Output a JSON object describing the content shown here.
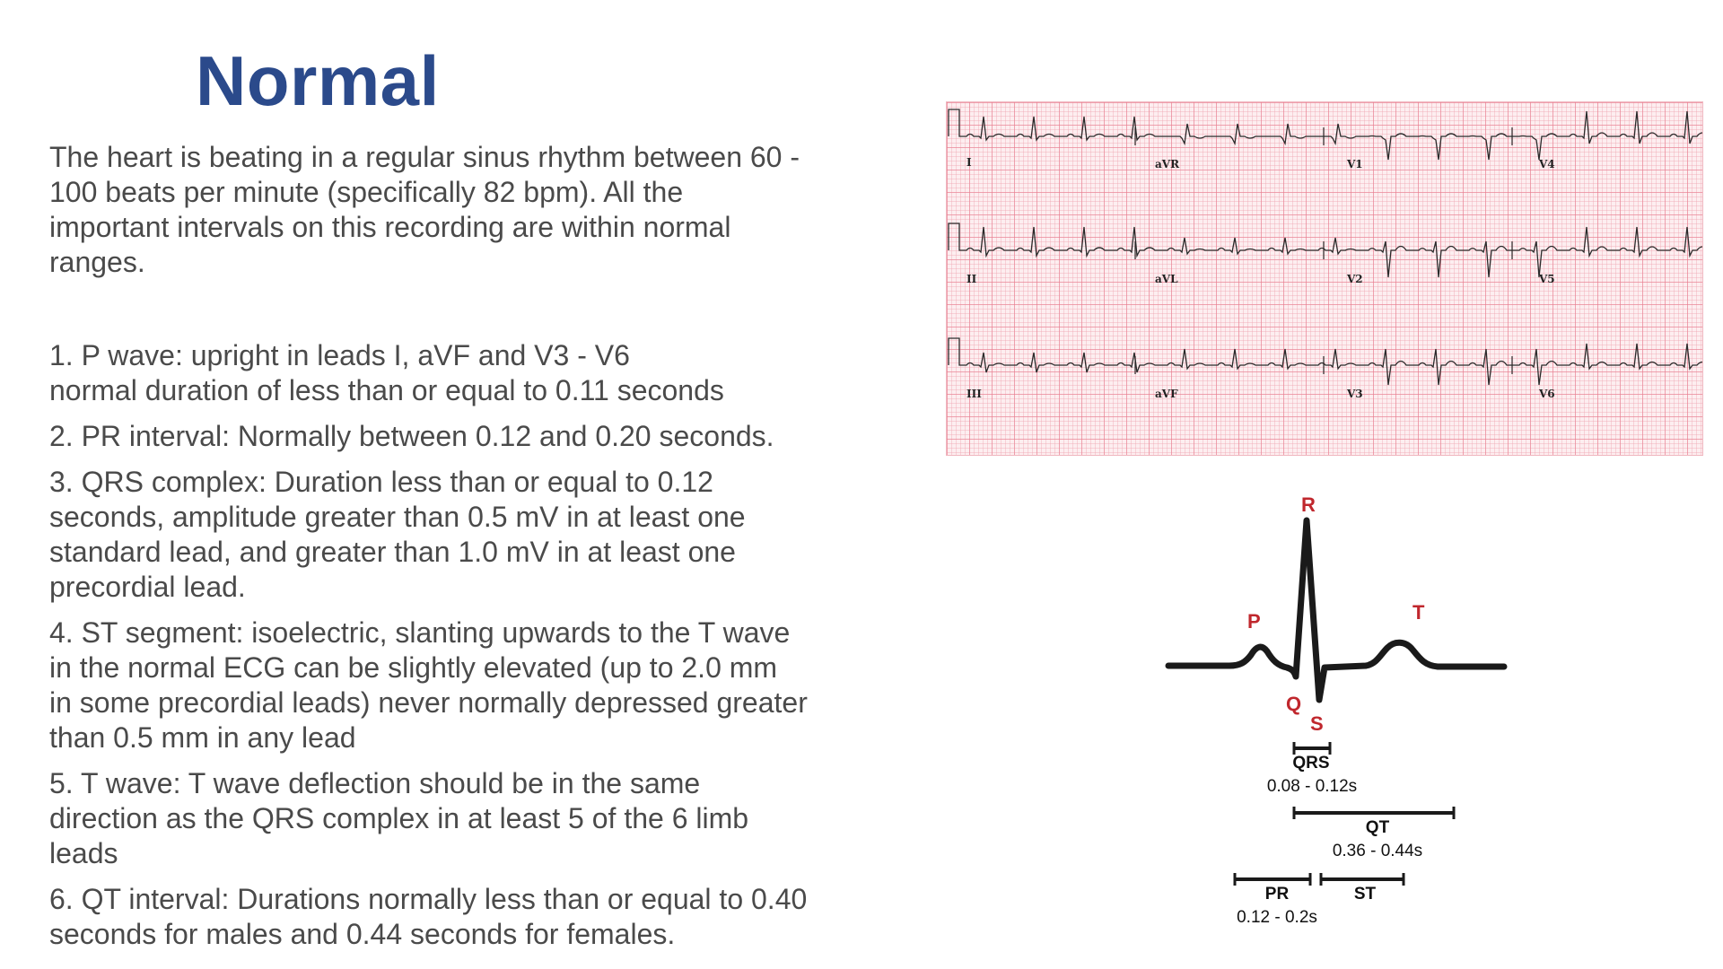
{
  "slide": {
    "title": "Normal",
    "intro_lines": [
      "The heart is beating in a regular sinus rhythm between 60 -",
      "100 beats per minute (specifically 82 bpm). All the",
      "important intervals on this recording are within normal",
      "ranges."
    ],
    "points": [
      {
        "lines": [
          "1.  P wave: upright in leads I, aVF and V3 - V6",
          "normal duration of less than or equal to 0.11 seconds"
        ]
      },
      {
        "lines": [
          "2. PR interval: Normally between 0.12 and 0.20 seconds."
        ]
      },
      {
        "lines": [
          "3. QRS complex: Duration less than or equal to 0.12",
          "seconds, amplitude greater than 0.5 mV in at least one",
          "standard lead, and greater than 1.0 mV in at least one",
          "precordial lead."
        ]
      },
      {
        "lines": [
          "4. ST segment: isoelectric, slanting upwards to the T wave",
          "in the normal ECG can be slightly elevated (up to 2.0 mm",
          "in some precordial leads) never normally depressed greater",
          "than 0.5 mm in any lead"
        ]
      },
      {
        "lines": [
          "5. T wave: T wave deflection should be in the same",
          "direction as the QRS complex in at least 5 of the 6 limb",
          "leads"
        ]
      },
      {
        "lines": [
          "6. QT interval:  Durations normally less than or equal to 0.40",
          "seconds for males and 0.44 seconds for females."
        ]
      }
    ]
  },
  "ecg": {
    "row1": [
      "I",
      "aVR",
      "V1",
      "V4"
    ],
    "row2": [
      "II",
      "aVL",
      "V2",
      "V5"
    ],
    "row3": [
      "III",
      "aVF",
      "V3",
      "V6"
    ]
  },
  "waveform": {
    "P": "P",
    "Q": "Q",
    "R": "R",
    "S": "S",
    "T": "T",
    "qrs_label": "QRS",
    "qrs_range": "0.08 - 0.12s",
    "qt_label": "QT",
    "qt_range": "0.36 - 0.44s",
    "pr_label": "PR",
    "pr_range": "0.12 - 0.2s",
    "st_label": "ST",
    "colors": {
      "wave_labels": "#c0272d",
      "line": "#1a1a1a"
    }
  }
}
